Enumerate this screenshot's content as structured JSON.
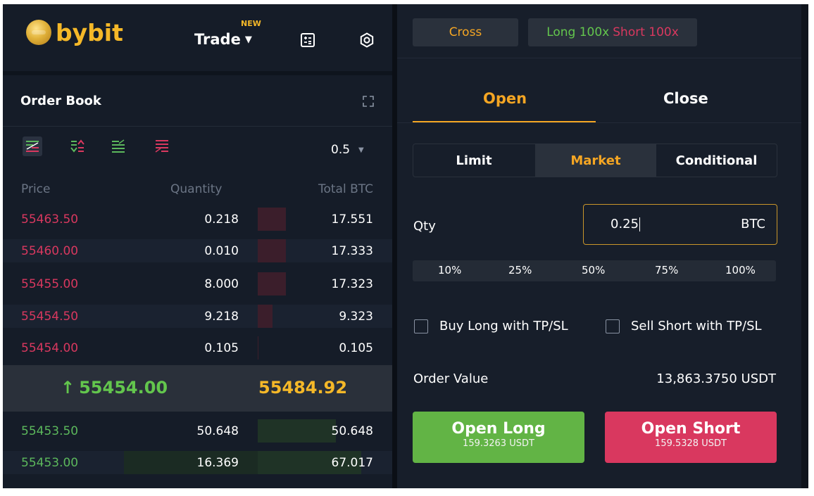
{
  "header": {
    "brand": "bybit",
    "trade_menu": "Trade",
    "new_badge": "NEW"
  },
  "order_book": {
    "title": "Order Book",
    "step": "0.5",
    "columns": {
      "price": "Price",
      "quantity": "Quantity",
      "total": "Total BTC"
    },
    "asks": [
      {
        "price": "55463.50",
        "qty": "0.218",
        "total": "17.551",
        "depth": 0.21
      },
      {
        "price": "55460.00",
        "qty": "0.010",
        "total": "17.333",
        "depth": 0.21
      },
      {
        "price": "55455.00",
        "qty": "8.000",
        "total": "17.323",
        "depth": 0.21
      },
      {
        "price": "55454.50",
        "qty": "9.218",
        "total": "9.323",
        "depth": 0.11
      },
      {
        "price": "55454.00",
        "qty": "0.105",
        "total": "0.105",
        "depth": 0.0
      }
    ],
    "last_price": "55454.00",
    "mark_price": "55484.92",
    "bids": [
      {
        "price": "55453.50",
        "qty": "50.648",
        "total": "50.648",
        "depth": 0.58
      },
      {
        "price": "55453.00",
        "qty": "16.369",
        "total": "67.017",
        "depth": 0.77
      }
    ]
  },
  "trade_panel": {
    "margin_mode": "Cross",
    "leverage_long": "Long 100x",
    "leverage_short": "Short 100x",
    "tabs": {
      "open": "Open",
      "close": "Close"
    },
    "order_types": {
      "limit": "Limit",
      "market": "Market",
      "conditional": "Conditional"
    },
    "qty_label": "Qty",
    "qty_value": "0.25",
    "qty_unit": "BTC",
    "percents": [
      "10%",
      "25%",
      "50%",
      "75%",
      "100%"
    ],
    "tpsl_long": "Buy Long with TP/SL",
    "tpsl_short": "Sell Short with TP/SL",
    "order_value_label": "Order Value",
    "order_value": "13,863.3750 USDT",
    "open_long": {
      "label": "Open Long",
      "cost": "159.3263 USDT"
    },
    "open_short": {
      "label": "Open Short",
      "cost": "159.5328 USDT"
    }
  },
  "colors": {
    "accent": "#f5a623",
    "buy": "#62b445",
    "sell": "#d9385f",
    "background": "#151c28"
  }
}
